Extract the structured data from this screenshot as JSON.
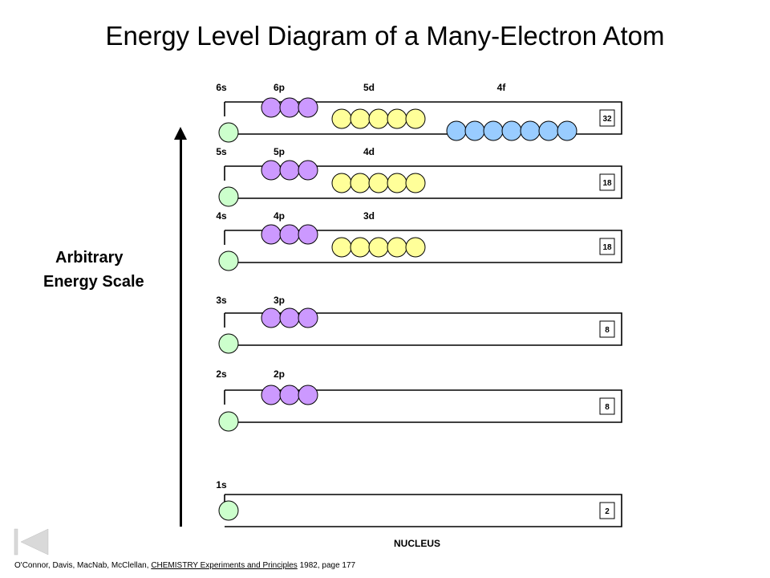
{
  "title": "Energy Level Diagram of a Many-Electron Atom",
  "y_axis": {
    "line1": "Arbitrary",
    "line2": "Energy Scale"
  },
  "nucleus_label": "NUCLEUS",
  "citation": {
    "authors": "O'Connor, Davis, MacNab, McClellan,",
    "book": "CHEMISTRY Experiments and Principles",
    "details": "1982, page 177"
  },
  "colors": {
    "s": "#ccffcc",
    "p": "#cc99ff",
    "d": "#ffff99",
    "f": "#99ccff",
    "outline": "#000000"
  },
  "levels": [
    {
      "n": 6,
      "capacity": "32",
      "sublevels": [
        {
          "label": "6s",
          "type": "s",
          "orbitals": 1
        },
        {
          "label": "6p",
          "type": "p",
          "orbitals": 3
        },
        {
          "label": "5d",
          "type": "d",
          "orbitals": 5
        },
        {
          "label": "4f",
          "type": "f",
          "orbitals": 7
        }
      ]
    },
    {
      "n": 5,
      "capacity": "18",
      "sublevels": [
        {
          "label": "5s",
          "type": "s",
          "orbitals": 1
        },
        {
          "label": "5p",
          "type": "p",
          "orbitals": 3
        },
        {
          "label": "4d",
          "type": "d",
          "orbitals": 5
        }
      ]
    },
    {
      "n": 4,
      "capacity": "18",
      "sublevels": [
        {
          "label": "4s",
          "type": "s",
          "orbitals": 1
        },
        {
          "label": "4p",
          "type": "p",
          "orbitals": 3
        },
        {
          "label": "3d",
          "type": "d",
          "orbitals": 5
        }
      ]
    },
    {
      "n": 3,
      "capacity": "8",
      "sublevels": [
        {
          "label": "3s",
          "type": "s",
          "orbitals": 1
        },
        {
          "label": "3p",
          "type": "p",
          "orbitals": 3
        }
      ]
    },
    {
      "n": 2,
      "capacity": "8",
      "sublevels": [
        {
          "label": "2s",
          "type": "s",
          "orbitals": 1
        },
        {
          "label": "2p",
          "type": "p",
          "orbitals": 3
        }
      ]
    },
    {
      "n": 1,
      "capacity": "2",
      "sublevels": [
        {
          "label": "1s",
          "type": "s",
          "orbitals": 1
        }
      ]
    }
  ]
}
